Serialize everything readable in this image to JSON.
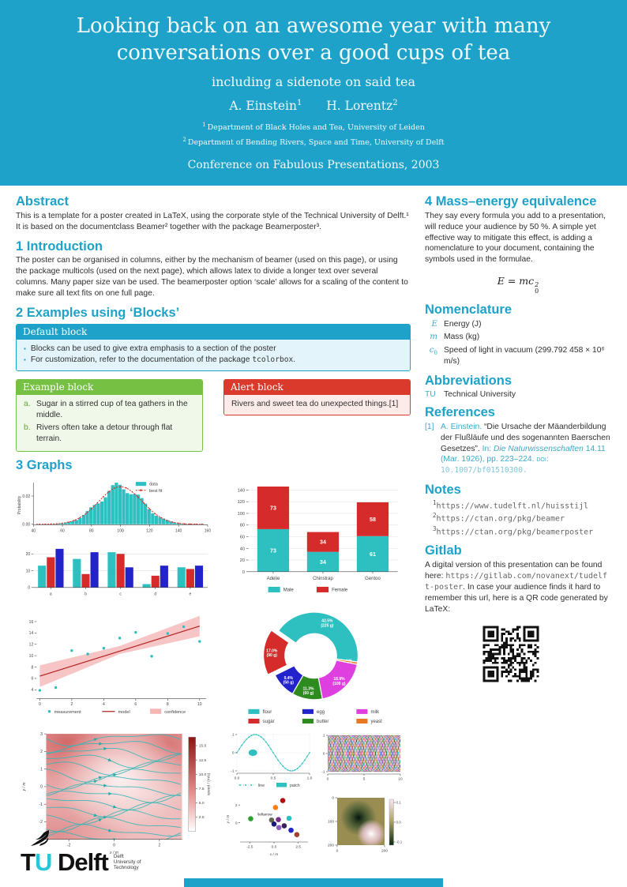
{
  "header": {
    "title": "Looking back on an awesome year with many conversations over a good cups of tea",
    "subtitle": "including a sidenote on said tea",
    "authors": [
      {
        "name": "A. Einstein",
        "sup": "1"
      },
      {
        "name": "H. Lorentz",
        "sup": "2"
      }
    ],
    "affiliations": [
      {
        "sup": "1",
        "text": "Department of Black Holes and Tea, University of Leiden"
      },
      {
        "sup": "2",
        "text": "Department of Bending Rivers, Space and Time, University of Delft"
      }
    ],
    "conference": "Conference on Fabulous Presentations, 2003"
  },
  "left": {
    "abstract": {
      "title": "Abstract",
      "text": "This is a template for a poster created in LaTeX, using the corporate style of the Technical University of Delft.¹ It is based on the documentclass Beamer² together with the package Beamerposter³."
    },
    "intro": {
      "title": "1 Introduction",
      "text": "The poster can be organised in columns, either by the mechanism of beamer (used on this page), or using the package multicols (used on the next page), which allows latex to divide a longer text over several columns. Many paper size van be used. The beamerposter option ‘scale’ allows for a scaling of the content to make sure all text fits on one full page."
    },
    "examples": {
      "title": "2 Examples using ‘Blocks’",
      "default_block": {
        "title": "Default block",
        "bullet1": "Blocks can be used to give extra emphasis to a section of the poster",
        "bullet2_pre": "For customization, refer to the documentation of the package ",
        "bullet2_code": "tcolorbox",
        "bullet2_post": "."
      },
      "example_block": {
        "title": "Example block",
        "items": [
          {
            "label": "a.",
            "text": "Sugar in a stirred cup of tea gathers in the middle."
          },
          {
            "label": "b.",
            "text": "Rivers often take a detour through flat terrain."
          }
        ]
      },
      "alert_block": {
        "title": "Alert block",
        "text": "Rivers and sweet tea do unexpected things.[1]"
      }
    },
    "graphs_title": "3 Graphs"
  },
  "right": {
    "mass": {
      "title": "4 Mass–energy equivalence",
      "text": "They say every formula you add to a presentation, will reduce your audience by 50 %. A simple yet effective way to mitigate this effect, is adding a nomenclature to your document, containing the symbols used in the formulae.",
      "formula_base": "E = mc",
      "formula_sup": "2",
      "formula_sub": "0"
    },
    "nomenclature": {
      "title": "Nomenclature",
      "items": [
        {
          "sym": "E",
          "desc": "Energy (J)"
        },
        {
          "sym": "m",
          "desc": "Mass (kg)"
        },
        {
          "sym": "c",
          "sub": "0",
          "desc": "Speed of light in vacuum (299.792 458 × 10⁶ m/s)"
        }
      ]
    },
    "abbreviations": {
      "title": "Abbreviations",
      "items": [
        {
          "abbr": "TU",
          "desc": "Technical University"
        }
      ]
    },
    "references": {
      "title": "References",
      "entries": [
        {
          "label": "[1]",
          "author": "A. Einstein.",
          "title": "“Die Ursache der Mäanderbildung der Flußläufe und des sogenannten Baerschen Gesetzes”.",
          "in_label": "In:",
          "journal": "Die Naturwissenschaften",
          "detail": "14.11 (Mar. 1926), pp. 223–224.",
          "doi_label": "doi:",
          "doi": "10.1007/bf01510300."
        }
      ]
    },
    "notes": {
      "title": "Notes",
      "items": [
        {
          "mark": "1",
          "url": "https://www.tudelft.nl/huisstijl"
        },
        {
          "mark": "2",
          "url": "https://ctan.org/pkg/beamer"
        },
        {
          "mark": "3",
          "url": "https://ctan.org/pkg/beamerposter"
        }
      ]
    },
    "gitlab": {
      "title": "Gitlab",
      "pre": "A digital version of this presentation can be found here: ",
      "url": "https://gitlab.com/novanext/tudelft-poster",
      "post": ". In case your audience finds it hard to remember this url, here is a QR code generated by LaTeX:"
    }
  },
  "footer": {
    "logo": {
      "tu_t": "T",
      "tu_u": "U",
      "delft": "Delft",
      "side1": "Delft",
      "side2": "University of",
      "side3": "Technology"
    }
  },
  "colors": {
    "accent": "#1EA2C9",
    "teal": "#2EC0C0",
    "red": "#D62B2B",
    "blue": "#2323CC",
    "green": "#2E8B20",
    "magenta": "#DF3FDF",
    "orange": "#E87722",
    "pink_band": "#F5B6B6",
    "green2": "#2CA02C",
    "orange2": "#FF7F0E",
    "darkred": "#B01010",
    "olive2": "#66664E",
    "purple": "#7B2D8B",
    "navy": "#1A1A70",
    "violet": "#8B5FBF",
    "plum": "#3D1F5C",
    "brown": "#A0422D",
    "phases_palette": [
      "#D62B2B",
      "#2323CC",
      "#2E8B20",
      "#DF3FDF",
      "#E87722",
      "#2EC0C0",
      "#111111",
      "#999900",
      "#CC2288",
      "#226688"
    ]
  },
  "chart_data": [
    {
      "name": "histogram",
      "type": "area",
      "ylabel": "Probability",
      "x_ticks": [
        40,
        60,
        80,
        100,
        120,
        140,
        160
      ],
      "y_ticks": [
        0,
        0.02
      ],
      "mean": 100,
      "std": 15,
      "peak": 0.0266,
      "legend": [
        "data",
        "best fit"
      ]
    },
    {
      "name": "grouped_bar",
      "type": "bar",
      "categories": [
        "a",
        "b",
        "c",
        "d",
        "e"
      ],
      "y_ticks": [
        0,
        10,
        20
      ],
      "series": [
        {
          "color_key": "teal",
          "values": [
            13,
            17,
            21,
            2,
            12
          ]
        },
        {
          "color_key": "red",
          "values": [
            18,
            8,
            20,
            7,
            11
          ]
        },
        {
          "color_key": "blue",
          "values": [
            23,
            21,
            12,
            13,
            13
          ]
        }
      ]
    },
    {
      "name": "penguins",
      "type": "bar-stacked",
      "categories": [
        "Adelie",
        "Chinstrap",
        "Gentoo"
      ],
      "y_ticks": [
        0,
        20,
        40,
        60,
        80,
        100,
        120,
        140
      ],
      "series": [
        {
          "name": "Male",
          "color_key": "teal",
          "values": [
            73,
            34,
            61
          ]
        },
        {
          "name": "Female",
          "color_key": "red",
          "values": [
            73,
            34,
            58
          ]
        }
      ]
    },
    {
      "name": "regression",
      "type": "scatter",
      "x_ticks": [
        0,
        2,
        4,
        6,
        8,
        10
      ],
      "y_ticks": [
        4,
        6,
        8,
        10,
        12,
        14,
        16
      ],
      "points": [
        [
          0,
          3.9
        ],
        [
          1,
          4.4
        ],
        [
          2,
          10.9
        ],
        [
          3,
          10.3
        ],
        [
          4,
          11.3
        ],
        [
          5,
          13.1
        ],
        [
          6,
          14.1
        ],
        [
          7,
          9.9
        ],
        [
          8,
          13.9
        ],
        [
          9,
          15.1
        ],
        [
          10,
          12.5
        ]
      ],
      "model": [
        [
          0,
          6.4
        ],
        [
          10,
          15.2
        ]
      ],
      "band": {
        "upper": [
          [
            0,
            8.3
          ],
          [
            5,
            11.7
          ],
          [
            10,
            17.0
          ]
        ],
        "lower": [
          [
            0,
            4.5
          ],
          [
            5,
            10.3
          ],
          [
            10,
            13.4
          ]
        ]
      },
      "legend": [
        "measurement",
        "model",
        "confidence"
      ]
    },
    {
      "name": "donut",
      "type": "pie",
      "start_angle_deg": 305,
      "slices": [
        {
          "label": "flour",
          "pct": 42.5,
          "grams": 225,
          "color_key": "teal"
        },
        {
          "label": "yeast",
          "pct": 0.9,
          "grams": 5,
          "color_key": "orange"
        },
        {
          "label": "milk",
          "pct": 18.9,
          "grams": 100,
          "color_key": "magenta"
        },
        {
          "label": "butter",
          "pct": 11.3,
          "grams": 60,
          "color_key": "green"
        },
        {
          "label": "egg",
          "pct": 9.4,
          "grams": 50,
          "color_key": "blue"
        },
        {
          "label": "sugar",
          "pct": 17.0,
          "grams": 90,
          "color_key": "red",
          "explode": true
        }
      ],
      "legend_order": [
        "flour",
        "egg",
        "milk",
        "sugar",
        "butter",
        "yeast"
      ]
    },
    {
      "name": "streamplot",
      "type": "streamplot",
      "xlabel": "x / m",
      "ylabel": "y / m",
      "x_ticks": [
        -2,
        0,
        2
      ],
      "y_ticks": [
        -3,
        -2,
        -1,
        0,
        1,
        2,
        3
      ],
      "colorbar": {
        "label": "speed / (m/s)",
        "ticks": [
          2.5,
          5.0,
          7.5,
          10.0,
          12.5,
          15.0
        ]
      }
    },
    {
      "name": "sine",
      "type": "line",
      "x_ticks": [
        "0.0",
        "0.5",
        "1.0"
      ],
      "y_ticks": [
        -1,
        0,
        1
      ],
      "legend": [
        "line",
        "patch"
      ],
      "ellipse": {
        "cx": 0.22,
        "cy": 0,
        "rx": 0.06,
        "ry": 0.18
      }
    },
    {
      "name": "phases",
      "type": "line-multi",
      "x_ticks": [
        0,
        5,
        10
      ],
      "y_ticks": [
        -1,
        0,
        1
      ],
      "n_lines": 20
    },
    {
      "name": "scatter_xy",
      "type": "scatter",
      "xlabel": "x / m",
      "ylabel": "y / m",
      "x_ticks": [
        "-2.5",
        "0.0",
        "2.5"
      ],
      "y_ticks": [
        0,
        2
      ],
      "annotation": "\\leftarrow",
      "points": [
        [
          -2.4,
          0.45,
          "green2"
        ],
        [
          0.15,
          1.72,
          "orange2"
        ],
        [
          0.9,
          2.5,
          "darkred"
        ],
        [
          1.55,
          0.5,
          "teal"
        ],
        [
          -0.25,
          0.3,
          "olive2"
        ],
        [
          0.45,
          0.35,
          "purple"
        ],
        [
          0.0,
          -0.15,
          "navy"
        ],
        [
          0.5,
          -0.55,
          "violet"
        ],
        [
          1.05,
          -0.35,
          "plum"
        ],
        [
          1.75,
          -0.85,
          "blue"
        ],
        [
          2.35,
          -1.35,
          "brown"
        ]
      ]
    },
    {
      "name": "field_image",
      "type": "heatmap",
      "x_ticks": [
        0,
        200
      ],
      "y_ticks": [
        0,
        100,
        200
      ],
      "colorbar_ticks": [
        "0.1",
        "0.0",
        "-0.1"
      ]
    }
  ]
}
